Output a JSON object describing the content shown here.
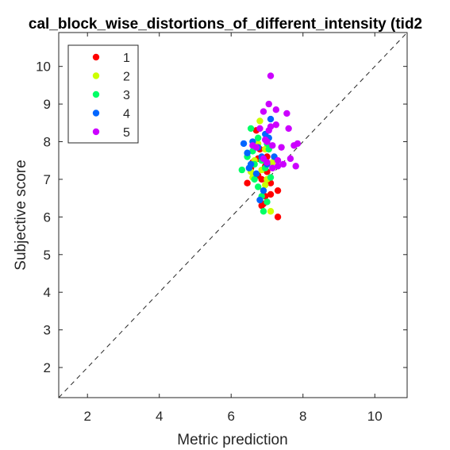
{
  "chart_data": {
    "type": "scatter",
    "title": "cal_block_wise_distortions_of_different_intensity (tid2",
    "xlabel": "Metric prediction",
    "ylabel": "Subjective score",
    "xlim": [
      1.2,
      10.9
    ],
    "ylim": [
      1.2,
      10.9
    ],
    "xticks": [
      2,
      4,
      6,
      8,
      10
    ],
    "yticks": [
      2,
      3,
      4,
      5,
      6,
      7,
      8,
      9,
      10
    ],
    "grid": false,
    "legend_position": "top-left",
    "reference_line": "dashed identity line y = x",
    "series": [
      {
        "name": "1",
        "color": "#ff0000",
        "points": [
          [
            6.45,
            6.9
          ],
          [
            6.75,
            7.55
          ],
          [
            6.95,
            7.35
          ],
          [
            6.85,
            6.3
          ],
          [
            6.95,
            6.55
          ],
          [
            7.1,
            6.6
          ],
          [
            7.3,
            6.7
          ],
          [
            7.3,
            6.0
          ],
          [
            6.85,
            7.0
          ],
          [
            6.7,
            8.3
          ],
          [
            6.55,
            7.3
          ],
          [
            7.0,
            7.2
          ],
          [
            6.9,
            6.35
          ],
          [
            6.6,
            7.45
          ],
          [
            7.1,
            6.9
          ],
          [
            6.8,
            7.8
          ],
          [
            7.0,
            7.6
          ],
          [
            6.75,
            7.1
          ]
        ]
      },
      {
        "name": "2",
        "color": "#ccff00",
        "points": [
          [
            6.55,
            7.2
          ],
          [
            6.8,
            8.55
          ],
          [
            6.95,
            7.8
          ],
          [
            7.1,
            6.15
          ],
          [
            6.9,
            6.7
          ],
          [
            7.0,
            7.0
          ],
          [
            6.65,
            7.5
          ],
          [
            6.85,
            7.25
          ],
          [
            7.15,
            7.45
          ],
          [
            6.75,
            7.95
          ],
          [
            6.95,
            6.85
          ],
          [
            6.6,
            7.05
          ]
        ]
      },
      {
        "name": "3",
        "color": "#00ff66",
        "points": [
          [
            6.3,
            7.25
          ],
          [
            6.45,
            7.6
          ],
          [
            6.65,
            7.0
          ],
          [
            6.75,
            6.8
          ],
          [
            6.9,
            6.15
          ],
          [
            7.0,
            6.4
          ],
          [
            6.85,
            7.5
          ],
          [
            7.05,
            7.8
          ],
          [
            6.55,
            8.35
          ],
          [
            6.75,
            8.1
          ],
          [
            6.95,
            7.3
          ],
          [
            7.1,
            7.05
          ],
          [
            6.6,
            7.75
          ],
          [
            6.85,
            6.55
          ],
          [
            7.0,
            7.95
          ],
          [
            6.65,
            7.4
          ]
        ]
      },
      {
        "name": "4",
        "color": "#0066ff",
        "points": [
          [
            6.35,
            7.95
          ],
          [
            6.45,
            7.7
          ],
          [
            6.55,
            7.4
          ],
          [
            6.7,
            7.15
          ],
          [
            6.8,
            6.45
          ],
          [
            6.9,
            6.7
          ],
          [
            7.05,
            8.1
          ],
          [
            7.1,
            8.6
          ],
          [
            6.6,
            8.0
          ],
          [
            6.85,
            7.6
          ],
          [
            7.0,
            7.4
          ],
          [
            6.75,
            7.85
          ],
          [
            7.2,
            7.6
          ],
          [
            6.5,
            7.3
          ],
          [
            6.95,
            8.2
          ]
        ]
      },
      {
        "name": "5",
        "color": "#cc00ff",
        "points": [
          [
            7.1,
            9.75
          ],
          [
            7.05,
            9.0
          ],
          [
            6.9,
            8.8
          ],
          [
            7.25,
            8.85
          ],
          [
            7.55,
            8.75
          ],
          [
            7.6,
            8.35
          ],
          [
            7.1,
            8.4
          ],
          [
            7.25,
            8.45
          ],
          [
            6.8,
            8.35
          ],
          [
            7.0,
            8.0
          ],
          [
            7.15,
            7.9
          ],
          [
            7.4,
            7.85
          ],
          [
            7.75,
            7.9
          ],
          [
            7.85,
            7.95
          ],
          [
            7.65,
            7.55
          ],
          [
            7.8,
            7.35
          ],
          [
            7.3,
            7.5
          ],
          [
            7.15,
            7.3
          ],
          [
            6.7,
            7.85
          ],
          [
            6.6,
            7.9
          ],
          [
            6.9,
            7.55
          ],
          [
            7.05,
            8.3
          ],
          [
            7.3,
            7.35
          ],
          [
            7.45,
            7.4
          ],
          [
            6.95,
            8.05
          ],
          [
            7.0,
            7.45
          ]
        ]
      }
    ]
  }
}
